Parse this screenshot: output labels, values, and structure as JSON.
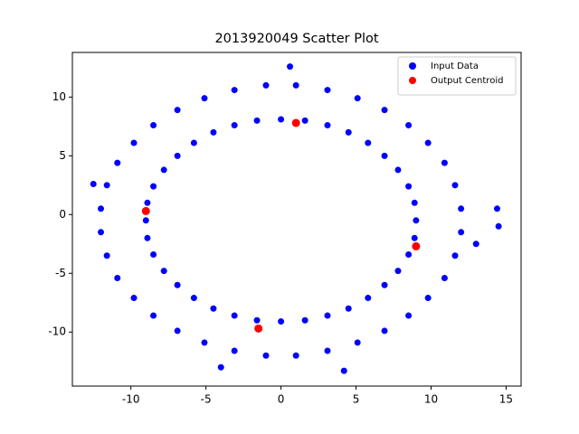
{
  "chart_data": {
    "type": "scatter",
    "title": "2013920049 Scatter Plot",
    "xlim": [
      -13.9,
      16.0
    ],
    "ylim": [
      -14.6,
      13.8
    ],
    "xticks": [
      -10,
      -5,
      0,
      5,
      10,
      15
    ],
    "yticks": [
      -10,
      -5,
      0,
      5,
      10
    ],
    "legend": "upper right",
    "series": [
      {
        "name": "Input Data",
        "color": "#0000ff",
        "x": [
          9.0,
          8.9,
          8.5,
          7.8,
          6.9,
          5.8,
          4.5,
          3.1,
          1.6,
          0,
          -1.6,
          -3.1,
          -4.5,
          -5.8,
          -6.9,
          -7.8,
          -8.5,
          -8.9,
          -9.0,
          -8.9,
          -8.5,
          -7.8,
          -6.9,
          -5.8,
          -4.5,
          -3.1,
          -1.6,
          0,
          1.6,
          3.1,
          4.5,
          5.8,
          6.9,
          7.8,
          8.5,
          8.9,
          12.0,
          11.6,
          10.9,
          9.8,
          8.5,
          6.9,
          5.1,
          3.1,
          1.0,
          -1.0,
          -3.1,
          -5.1,
          -6.9,
          -8.5,
          -9.8,
          -10.9,
          -11.6,
          -12.0,
          -12.0,
          -11.6,
          -10.9,
          -9.8,
          -8.5,
          -6.9,
          -5.1,
          -3.1,
          -1.0,
          1.0,
          3.1,
          5.1,
          6.9,
          8.5,
          9.8,
          10.9,
          11.6,
          12.0,
          14.4,
          14.5,
          13.0,
          -12.5,
          0.6,
          -4.0,
          4.2
        ],
        "y": [
          -0.5,
          1.0,
          2.4,
          3.8,
          5.0,
          6.1,
          7.0,
          7.6,
          8.0,
          8.1,
          8.0,
          7.6,
          7.0,
          6.1,
          5.0,
          3.8,
          2.4,
          1.0,
          -0.5,
          -2.0,
          -3.4,
          -4.8,
          -6.0,
          -7.1,
          -8.0,
          -8.6,
          -9.0,
          -9.1,
          -9.0,
          -8.6,
          -8.0,
          -7.1,
          -6.0,
          -4.8,
          -3.4,
          -2.0,
          0.5,
          2.5,
          4.4,
          6.1,
          7.6,
          8.9,
          9.9,
          10.6,
          11.0,
          11.0,
          10.6,
          9.9,
          8.9,
          7.6,
          6.1,
          4.4,
          2.5,
          0.5,
          -1.5,
          -3.5,
          -5.4,
          -7.1,
          -8.6,
          -9.9,
          -10.9,
          -11.6,
          -12.0,
          -12.0,
          -11.6,
          -10.9,
          -9.9,
          -8.6,
          -7.1,
          -5.4,
          -3.5,
          -1.5,
          0.5,
          -1.0,
          -2.5,
          2.6,
          12.6,
          -13.0,
          -13.3
        ]
      },
      {
        "name": "Output Centroid",
        "color": "#ff0000",
        "x": [
          -9.0,
          1.0,
          -1.5,
          9.0
        ],
        "y": [
          0.3,
          7.8,
          -9.7,
          -2.7
        ]
      }
    ]
  }
}
